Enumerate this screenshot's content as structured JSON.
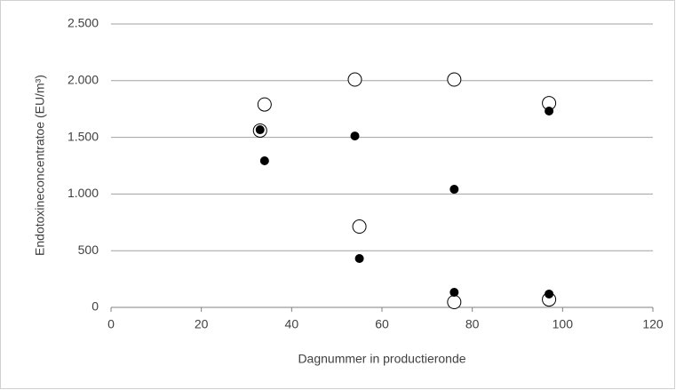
{
  "chart_data": {
    "type": "scatter",
    "x_label": "Dagnummer in productieronde",
    "y_label": "Endotoxineconcentratoe (EU/m³)",
    "xlim": [
      0,
      120
    ],
    "xticks": [
      0,
      20,
      40,
      60,
      80,
      100,
      120
    ],
    "ylim": [
      0,
      2500
    ],
    "yticks": [
      0,
      500,
      {
        "value": 1000,
        "label": "1.000"
      },
      {
        "value": 1500,
        "label": "1.500"
      },
      {
        "value": 2000,
        "label": "2.000"
      },
      {
        "value": 2500,
        "label": "2.500"
      }
    ],
    "grid": true,
    "series": [
      {
        "color": "#000000",
        "marker": "open",
        "x": [
          33,
          34,
          54,
          55,
          76,
          76,
          97,
          97
        ],
        "values": [
          1560,
          1790,
          2010,
          713,
          2010,
          47,
          1802,
          70
        ]
      },
      {
        "color": "#000000",
        "marker": "filled",
        "x": [
          33,
          34,
          54,
          55,
          76,
          76,
          97,
          97
        ],
        "values": [
          1567,
          1293,
          1512,
          431,
          1042,
          133,
          1732,
          118
        ]
      }
    ]
  }
}
